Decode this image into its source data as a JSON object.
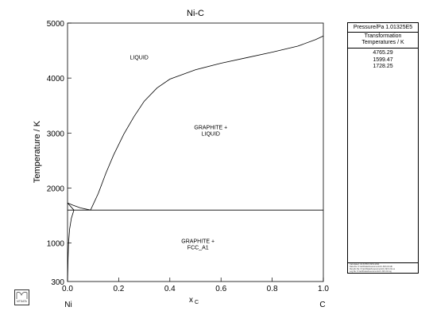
{
  "chart_data": {
    "type": "line",
    "title": "Ni-C",
    "xlabel": "x",
    "xlabel_sub": "C",
    "ylabel": "Temperature / K",
    "xlim": [
      0,
      1
    ],
    "ylim": [
      300,
      5000
    ],
    "y_ticks": [
      1000,
      2000,
      3000,
      4000,
      5000
    ],
    "y_bottom_label": "300",
    "x_ticks": [
      0.0,
      0.2,
      0.4,
      0.6,
      0.8,
      1.0
    ],
    "x_tick_labels": [
      "0.0",
      "0.2",
      "0.4",
      "0.6",
      "0.8",
      "1.0"
    ],
    "x_end_labels": {
      "left": "Ni",
      "right": "C"
    },
    "regions": [
      {
        "label_lines": [
          "LIQUID"
        ],
        "x": 0.28,
        "y": 4340
      },
      {
        "label_lines": [
          "GRAPHITE +",
          "LIQUID"
        ],
        "x": 0.56,
        "y": 3070
      },
      {
        "label_lines": [
          "GRAPHITE +",
          "FCC_A1"
        ],
        "x": 0.51,
        "y": 1000
      }
    ],
    "series": [
      {
        "values": [
          [
            0.0,
            1728
          ],
          [
            0.02,
            1690
          ],
          [
            0.05,
            1640
          ],
          [
            0.09,
            1599
          ]
        ]
      },
      {
        "values": [
          [
            0.09,
            1599
          ],
          [
            0.12,
            1900
          ],
          [
            0.15,
            2270
          ],
          [
            0.18,
            2600
          ],
          [
            0.22,
            2980
          ],
          [
            0.26,
            3300
          ],
          [
            0.3,
            3580
          ],
          [
            0.35,
            3820
          ],
          [
            0.4,
            3980
          ],
          [
            0.5,
            4150
          ],
          [
            0.6,
            4270
          ],
          [
            0.7,
            4370
          ],
          [
            0.8,
            4470
          ],
          [
            0.9,
            4580
          ],
          [
            0.97,
            4700
          ],
          [
            1.0,
            4765
          ]
        ]
      },
      {
        "values": [
          [
            0.0,
            1599
          ],
          [
            1.0,
            1599
          ]
        ]
      },
      {
        "values": [
          [
            0.0,
            1728
          ],
          [
            0.025,
            1599
          ]
        ]
      },
      {
        "values": [
          [
            0.025,
            1599
          ],
          [
            0.015,
            1450
          ],
          [
            0.008,
            1250
          ],
          [
            0.004,
            1000
          ],
          [
            0.002,
            700
          ],
          [
            0.0,
            300
          ]
        ]
      }
    ]
  },
  "info_panel": {
    "pressure": "Pressure/Pa   1.01325E5",
    "heading_line1": "Transformation",
    "heading_line2": "Temperatures / K",
    "values": [
      "4765.29",
      "1599.47",
      "1728.25"
    ],
    "footer_lines": [
      "Calculated: 10:34:55  8-NOV-2011",
      "Data file: D:\\asl\\Data\\Assessments\\C-Ni\\C-Ni.tdb",
      "Results file: D:\\asl\\Data\\Assessments\\C-Ni\\C-Ni.res",
      "Log file: D:\\asl\\Data\\Assessments\\C-Ni\\C-Ni.log"
    ]
  },
  "logo": {
    "text": "MTDATA"
  }
}
